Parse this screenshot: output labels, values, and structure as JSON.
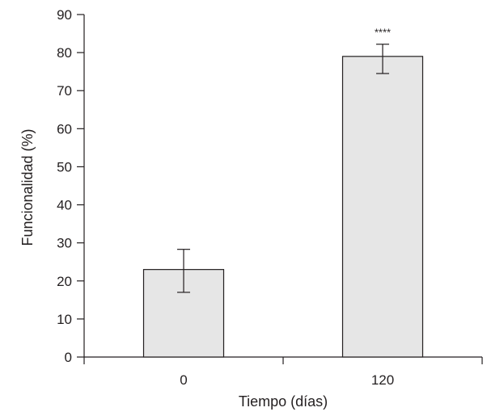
{
  "chart_data": {
    "type": "bar",
    "title": "",
    "xlabel": "Tiempo (días)",
    "ylabel": "Funcionalidad (%)",
    "categories": [
      "0",
      "120"
    ],
    "values": [
      23,
      79
    ],
    "error_upper": [
      28.3,
      82.2
    ],
    "error_lower": [
      17.0,
      74.5
    ],
    "ylim": [
      0,
      90
    ],
    "yticks": [
      "0",
      "10",
      "20",
      "30",
      "40",
      "50",
      "60",
      "70",
      "80",
      "90"
    ],
    "annotations": [
      {
        "category": "120",
        "text": "****"
      }
    ],
    "grid": false,
    "bar_color": "#e6e6e6",
    "bar_edge_color": "#231f20"
  }
}
